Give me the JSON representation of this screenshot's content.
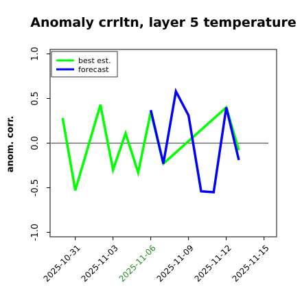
{
  "chart_data": {
    "type": "line",
    "title": "Anomaly crrltn, layer 5 temperature",
    "ylabel": "anom. corr.",
    "xlabel": "",
    "ylim": [
      -1.05,
      1.05
    ],
    "yticks": [
      -1.0,
      -0.5,
      0.0,
      0.5,
      1.0
    ],
    "ytick_labels": [
      "-1.0",
      "-0.5",
      "0.0",
      "0.5",
      "1.0"
    ],
    "xlim": [
      "2025-10-29",
      "2025-11-16"
    ],
    "xticks": [
      "2025-10-31",
      "2025-11-03",
      "2025-11-06",
      "2025-11-09",
      "2025-11-12",
      "2025-11-15"
    ],
    "xtick_labels": [
      "2025-10-31",
      "2025-11-03",
      "2025-11-06",
      "2025-11-09",
      "2025-11-12",
      "2025-11-15"
    ],
    "highlighted_xtick": "2025-11-06",
    "highlight_color": "#228b22",
    "reference_line_y": 0.0,
    "legend_position": "upper-left",
    "grid": false,
    "series": [
      {
        "name": "best est.",
        "color": "#00ff00",
        "x": [
          "2025-10-30",
          "2025-10-31",
          "2025-11-02",
          "2025-11-03",
          "2025-11-04",
          "2025-11-05",
          "2025-11-06",
          "2025-11-07",
          "2025-11-12",
          "2025-11-13"
        ],
        "values": [
          0.28,
          -0.53,
          0.43,
          -0.3,
          0.11,
          -0.33,
          0.35,
          -0.23,
          0.4,
          -0.08
        ]
      },
      {
        "name": "forecast",
        "color": "#0000ff",
        "x": [
          "2025-11-06",
          "2025-11-07",
          "2025-11-08",
          "2025-11-09",
          "2025-11-10",
          "2025-11-11",
          "2025-11-12",
          "2025-11-13"
        ],
        "values": [
          0.37,
          -0.23,
          0.58,
          0.31,
          -0.54,
          -0.55,
          0.4,
          -0.19
        ]
      }
    ]
  }
}
